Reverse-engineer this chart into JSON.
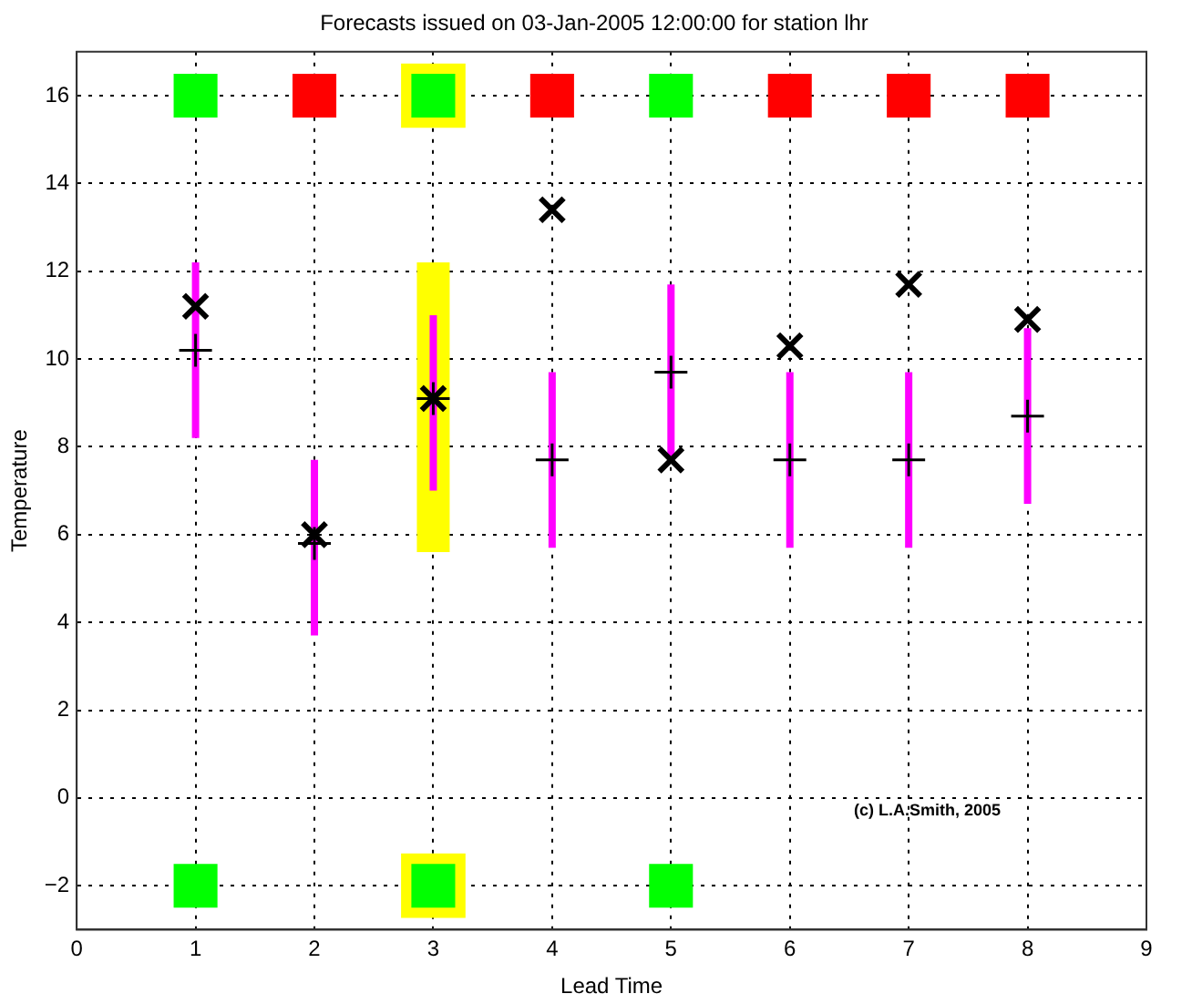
{
  "chart_data": {
    "type": "scatter",
    "title": "Forecasts issued on 03-Jan-2005 12:00:00 for station lhr",
    "xlabel": "Lead Time",
    "ylabel": "Temperature",
    "xlim": [
      0,
      9
    ],
    "xticks": [
      0,
      1,
      2,
      3,
      4,
      5,
      6,
      7,
      8,
      9
    ],
    "ylim": [
      -3,
      17
    ],
    "yticks": [
      -2,
      0,
      2,
      4,
      6,
      8,
      10,
      12,
      14,
      16
    ],
    "grid": true,
    "legend": false,
    "annotations": [
      "(c) L.A.Smith, 2005"
    ],
    "series": [
      {
        "type": "bar",
        "color": "#ffff00",
        "x": [
          3
        ],
        "base": [
          5.6
        ],
        "values": [
          6.6
        ]
      },
      {
        "type": "bar",
        "color": "#ff00ff",
        "x": [
          1,
          2,
          3,
          4,
          5,
          6,
          7,
          8
        ],
        "base": [
          8.2,
          3.7,
          7.0,
          5.7,
          7.7,
          5.7,
          5.7,
          6.7
        ],
        "values": [
          4.0,
          4.0,
          4.0,
          4.0,
          4.0,
          4.0,
          4.0,
          4.0
        ]
      },
      {
        "marker": "square",
        "color": "#ffff00",
        "x": [
          3,
          3
        ],
        "values": [
          16,
          -2
        ]
      },
      {
        "marker": "cross",
        "color": "#000000",
        "x": [
          1,
          2,
          3,
          4,
          5,
          6,
          7,
          8
        ],
        "values": [
          10.2,
          5.8,
          9.1,
          7.7,
          9.7,
          7.7,
          7.7,
          8.7
        ]
      },
      {
        "marker": "x",
        "color": "#000000",
        "x": [
          1,
          2,
          3,
          4,
          5,
          6,
          7,
          8
        ],
        "values": [
          11.2,
          6.0,
          9.1,
          13.4,
          7.7,
          10.3,
          11.7,
          10.9
        ]
      },
      {
        "marker": "square",
        "colors": [
          "#00ff00",
          "#ff0000",
          "#00ff00",
          "#ff0000",
          "#00ff00",
          "#ff0000",
          "#ff0000",
          "#ff0000"
        ],
        "x": [
          1,
          2,
          3,
          4,
          5,
          6,
          7,
          8
        ],
        "values": [
          16,
          16,
          16,
          16,
          16,
          16,
          16,
          16
        ]
      },
      {
        "marker": "square",
        "color": "#00ff00",
        "x": [
          1,
          3,
          5
        ],
        "values": [
          -2,
          -2,
          -2
        ]
      }
    ]
  }
}
